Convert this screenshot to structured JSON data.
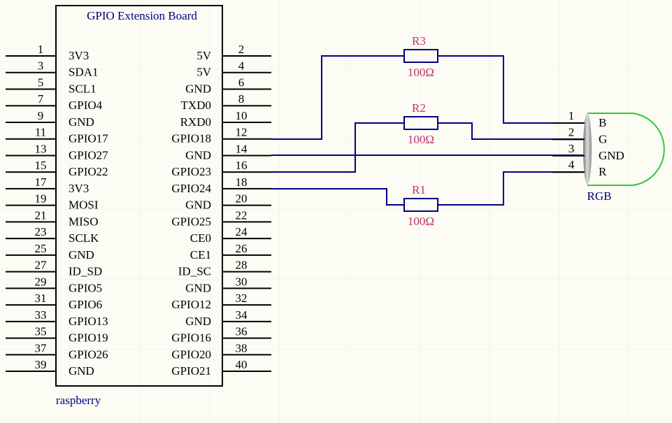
{
  "title": "GPIO Extension Board",
  "footer": "raspberry",
  "left_pins": [
    {
      "number": 1,
      "name": "3V3"
    },
    {
      "number": 3,
      "name": "SDA1"
    },
    {
      "number": 5,
      "name": "SCL1"
    },
    {
      "number": 7,
      "name": "GPIO4"
    },
    {
      "number": 9,
      "name": "GND"
    },
    {
      "number": 11,
      "name": "GPIO17"
    },
    {
      "number": 13,
      "name": "GPIO27"
    },
    {
      "number": 15,
      "name": "GPIO22"
    },
    {
      "number": 17,
      "name": "3V3"
    },
    {
      "number": 19,
      "name": "MOSI"
    },
    {
      "number": 21,
      "name": "MISO"
    },
    {
      "number": 23,
      "name": "SCLK"
    },
    {
      "number": 25,
      "name": "GND"
    },
    {
      "number": 27,
      "name": "ID_SD"
    },
    {
      "number": 29,
      "name": "GPIO5"
    },
    {
      "number": 31,
      "name": "GPIO6"
    },
    {
      "number": 33,
      "name": "GPIO13"
    },
    {
      "number": 35,
      "name": "GPIO19"
    },
    {
      "number": 37,
      "name": "GPIO26"
    },
    {
      "number": 39,
      "name": "GND"
    }
  ],
  "right_pins": [
    {
      "number": 2,
      "name": "5V"
    },
    {
      "number": 4,
      "name": "5V"
    },
    {
      "number": 6,
      "name": "GND"
    },
    {
      "number": 8,
      "name": "TXD0"
    },
    {
      "number": 10,
      "name": "RXD0"
    },
    {
      "number": 12,
      "name": "GPIO18"
    },
    {
      "number": 14,
      "name": "GND"
    },
    {
      "number": 16,
      "name": "GPIO23"
    },
    {
      "number": 18,
      "name": "GPIO24"
    },
    {
      "number": 20,
      "name": "GND"
    },
    {
      "number": 22,
      "name": "GPIO25"
    },
    {
      "number": 24,
      "name": "CE0"
    },
    {
      "number": 26,
      "name": "CE1"
    },
    {
      "number": 28,
      "name": "ID_SC"
    },
    {
      "number": 30,
      "name": "GND"
    },
    {
      "number": 32,
      "name": "GPIO12"
    },
    {
      "number": 34,
      "name": "GND"
    },
    {
      "number": 36,
      "name": "GPIO16"
    },
    {
      "number": 38,
      "name": "GPIO20"
    },
    {
      "number": 40,
      "name": "GPIO21"
    }
  ],
  "resistors": [
    {
      "ref": "R3",
      "value": "100Ω"
    },
    {
      "ref": "R2",
      "value": "100Ω"
    },
    {
      "ref": "R1",
      "value": "100Ω"
    }
  ],
  "led": {
    "label": "RGB",
    "pins": [
      {
        "number": 1,
        "name": "B"
      },
      {
        "number": 2,
        "name": "G"
      },
      {
        "number": 3,
        "name": "GND"
      },
      {
        "number": 4,
        "name": "R"
      }
    ]
  }
}
